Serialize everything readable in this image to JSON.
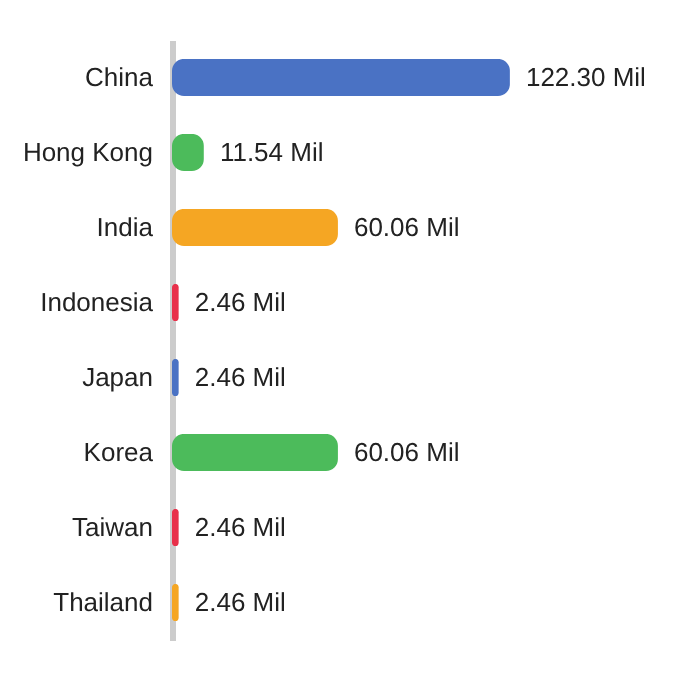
{
  "chart_data": {
    "type": "bar",
    "orientation": "horizontal",
    "categories": [
      "China",
      "Hong Kong",
      "India",
      "Indonesia",
      "Japan",
      "Korea",
      "Taiwan",
      "Thailand"
    ],
    "values": [
      122.3,
      11.54,
      60.06,
      2.46,
      2.46,
      60.06,
      2.46,
      2.46
    ],
    "value_labels": [
      "122.30 Mil",
      "11.54 Mil",
      "60.06 Mil",
      "2.46 Mil",
      "2.46 Mil",
      "60.06 Mil",
      "2.46 Mil",
      "2.46 Mil"
    ],
    "colors": [
      "#4a72c4",
      "#4cbb5b",
      "#f5a623",
      "#e8304a",
      "#4a72c4",
      "#4cbb5b",
      "#e8304a",
      "#f5a623"
    ],
    "tick_labels": "y"
  }
}
